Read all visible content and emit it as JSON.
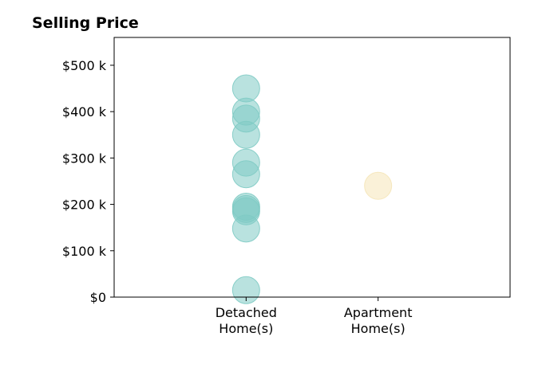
{
  "chart_data": {
    "type": "scatter",
    "title": "Selling Price",
    "xlabel": "",
    "ylabel": "",
    "categories": [
      [
        "Detached",
        "Home(s)"
      ],
      [
        "Apartment",
        "Home(s)"
      ]
    ],
    "ylim": [
      0,
      560000
    ],
    "yticks": [
      0,
      100000,
      200000,
      300000,
      400000,
      500000
    ],
    "ytick_labels": [
      "$0",
      "$100 k",
      "$200 k",
      "$300 k",
      "$400 k",
      "$500 k"
    ],
    "grid": false,
    "series": [
      {
        "category": "Detached Home(s)",
        "color": "#80cbc4",
        "values": [
          450000,
          400000,
          385000,
          350000,
          290000,
          265000,
          195000,
          190000,
          185000,
          148000,
          15000
        ]
      },
      {
        "category": "Apartment Home(s)",
        "color": "#f5e6b8",
        "values": [
          240000
        ]
      }
    ]
  }
}
